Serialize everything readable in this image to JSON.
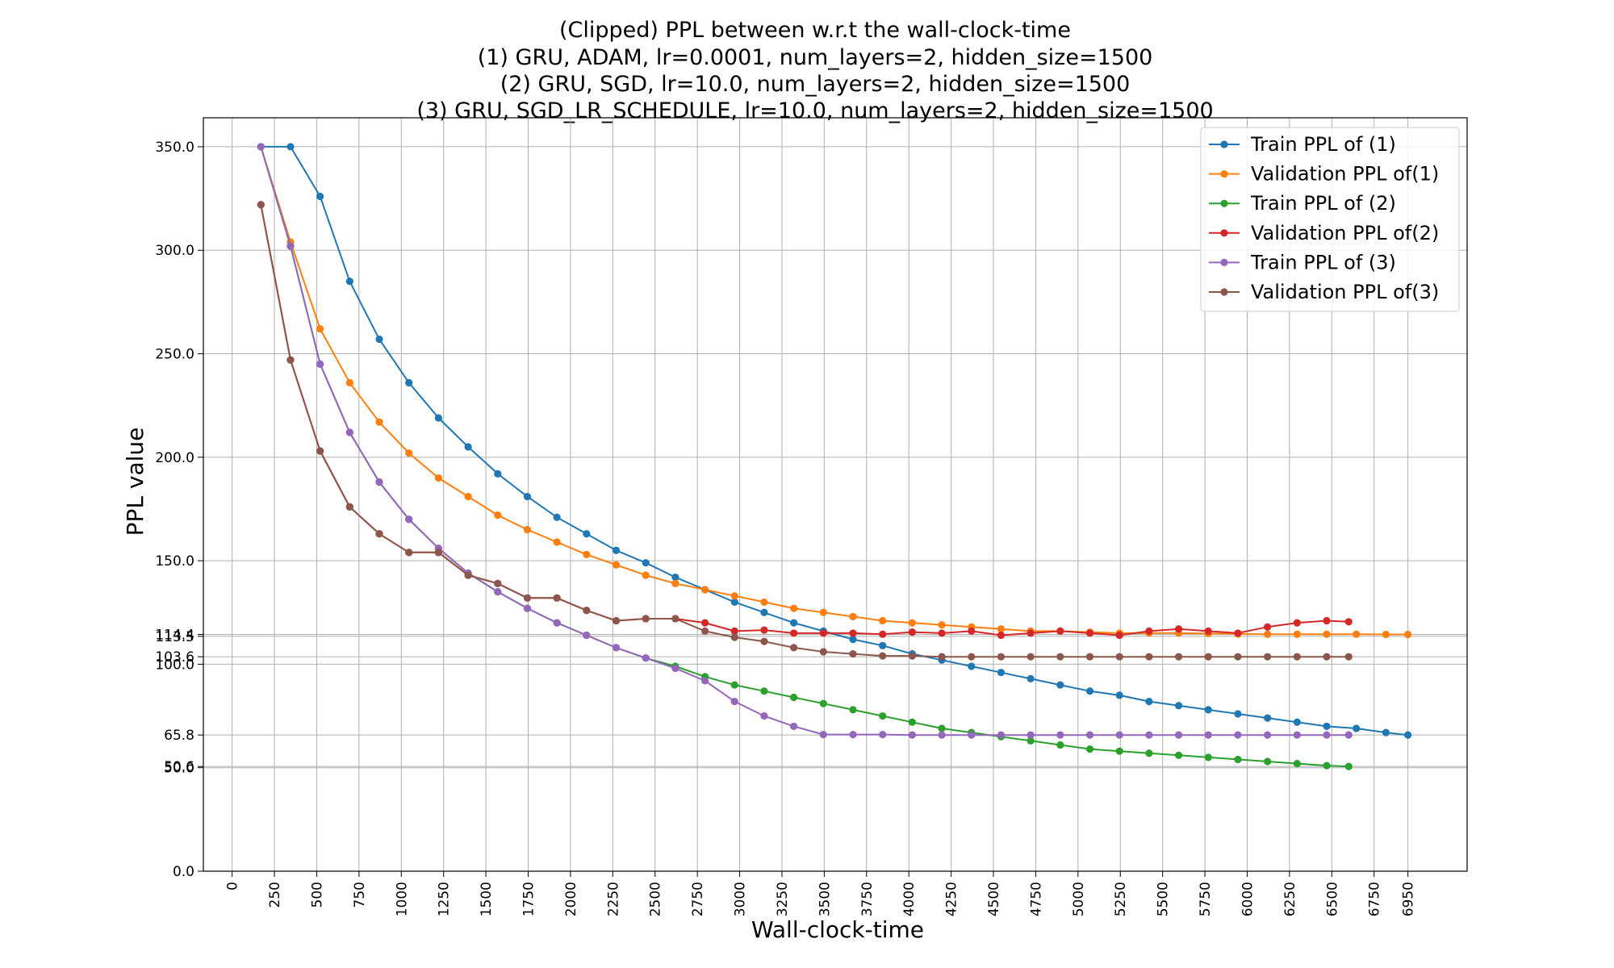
{
  "chart_data": {
    "type": "line",
    "title_lines": [
      "(Clipped) PPL between w.r.t the wall-clock-time",
      "(1) GRU, ADAM, lr=0.0001,  num_layers=2,  hidden_size=1500",
      "(2) GRU, SGD, lr=10.0,  num_layers=2,  hidden_size=1500",
      "(3) GRU, SGD_LR_SCHEDULE, lr=10.0,  num_layers=2,  hidden_size=1500"
    ],
    "xlabel": "Wall-clock-time",
    "ylabel": "PPL value",
    "xlim": [
      -170,
      7300
    ],
    "ylim": [
      0,
      364
    ],
    "x_ticks": [
      0,
      250,
      500,
      750,
      1000,
      1250,
      1500,
      1750,
      2000,
      2250,
      2500,
      2750,
      3000,
      3250,
      3500,
      3750,
      4000,
      4250,
      4500,
      4750,
      5000,
      5250,
      5500,
      5750,
      6000,
      6250,
      6500,
      6750,
      6950
    ],
    "y_ticks": [
      0.0,
      50.0,
      50.6,
      65.8,
      100.0,
      103.6,
      113.5,
      114.4,
      150.0,
      200.0,
      250.0,
      300.0,
      350.0
    ],
    "y_tick_labels": [
      "0.0",
      "50.0",
      "50.6",
      "65.8",
      "100.0",
      "103.6",
      "113.5",
      "114.4",
      "150.0",
      "200.0",
      "250.0",
      "300.0",
      "350.0"
    ],
    "grid": true,
    "legend_position": "top-right",
    "series": [
      {
        "name": "Train PPL of (1)",
        "color": "#1f77b4",
        "x": [
          170,
          345,
          520,
          695,
          870,
          1045,
          1220,
          1395,
          1570,
          1745,
          1920,
          2095,
          2270,
          2445,
          2620,
          2795,
          2970,
          3145,
          3320,
          3495,
          3670,
          3845,
          4020,
          4195,
          4370,
          4545,
          4720,
          4895,
          5070,
          5245,
          5420,
          5595,
          5770,
          5945,
          6120,
          6295,
          6470,
          6645,
          6820,
          6950
        ],
        "y": [
          350,
          350,
          326,
          285,
          257,
          236,
          219,
          205,
          192,
          181,
          171,
          163,
          155,
          149,
          142,
          136,
          130,
          125,
          120,
          116,
          112,
          109,
          105,
          102,
          99,
          96,
          93,
          90,
          87,
          85,
          82,
          80,
          78,
          76,
          74,
          72,
          70,
          69,
          67,
          65.8
        ]
      },
      {
        "name": "Validation PPL of(1)",
        "color": "#ff7f0e",
        "x": [
          170,
          345,
          520,
          695,
          870,
          1045,
          1220,
          1395,
          1570,
          1745,
          1920,
          2095,
          2270,
          2445,
          2620,
          2795,
          2970,
          3145,
          3320,
          3495,
          3670,
          3845,
          4020,
          4195,
          4370,
          4545,
          4720,
          4895,
          5070,
          5245,
          5420,
          5595,
          5770,
          5945,
          6120,
          6295,
          6470,
          6645,
          6820,
          6950
        ],
        "y": [
          350,
          304,
          262,
          236,
          217,
          202,
          190,
          181,
          172,
          165,
          159,
          153,
          148,
          143,
          139,
          136,
          133,
          130,
          127,
          125,
          123,
          121,
          120,
          119,
          118,
          117,
          116,
          116,
          115.5,
          115,
          115,
          115,
          114.8,
          114.6,
          114.5,
          114.5,
          114.5,
          114.5,
          114.4,
          114.4
        ]
      },
      {
        "name": "Train PPL of (2)",
        "color": "#2ca02c",
        "x": [
          170,
          345,
          520,
          695,
          870,
          1045,
          1220,
          1395,
          1570,
          1745,
          1920,
          2095,
          2270,
          2445,
          2620,
          2795,
          2970,
          3145,
          3320,
          3495,
          3670,
          3845,
          4020,
          4195,
          4370,
          4545,
          4720,
          4895,
          5070,
          5245,
          5420,
          5595,
          5770,
          5945,
          6120,
          6295,
          6470,
          6600
        ],
        "y": [
          350,
          302,
          245,
          212,
          188,
          170,
          156,
          144,
          135,
          127,
          120,
          114,
          108,
          103,
          99,
          94,
          90,
          87,
          84,
          81,
          78,
          75,
          72,
          69,
          67,
          65,
          63,
          61,
          59,
          58,
          57,
          56,
          55,
          54,
          53,
          52,
          51,
          50.6
        ]
      },
      {
        "name": "Validation PPL of(2)",
        "color": "#d62728",
        "x": [
          170,
          345,
          520,
          695,
          870,
          1045,
          1220,
          1395,
          1570,
          1745,
          1920,
          2095,
          2270,
          2445,
          2620,
          2795,
          2970,
          3145,
          3320,
          3495,
          3670,
          3845,
          4020,
          4195,
          4370,
          4545,
          4720,
          4895,
          5070,
          5245,
          5420,
          5595,
          5770,
          5945,
          6120,
          6295,
          6470,
          6600
        ],
        "y": [
          322,
          247,
          203,
          176,
          163,
          154,
          154,
          143,
          139,
          132,
          132,
          126,
          121,
          122,
          122,
          120,
          116,
          116.5,
          115,
          115,
          115,
          114.5,
          115.5,
          115,
          116,
          114,
          115,
          116,
          115,
          114,
          116,
          117,
          116,
          115,
          118,
          120,
          121,
          120.5
        ]
      },
      {
        "name": "Train PPL of (3)",
        "color": "#9467bd",
        "x": [
          170,
          345,
          520,
          695,
          870,
          1045,
          1220,
          1395,
          1570,
          1745,
          1920,
          2095,
          2270,
          2445,
          2620,
          2795,
          2970,
          3145,
          3320,
          3495,
          3670,
          3845,
          4020,
          4195,
          4370,
          4545,
          4720,
          4895,
          5070,
          5245,
          5420,
          5595,
          5770,
          5945,
          6120,
          6295,
          6470,
          6600
        ],
        "y": [
          350,
          302,
          245,
          212,
          188,
          170,
          156,
          144,
          135,
          127,
          120,
          114,
          108,
          103,
          98,
          92,
          82,
          75,
          70,
          66,
          66,
          66,
          65.8,
          65.8,
          65.8,
          65.8,
          65.8,
          65.8,
          65.8,
          65.8,
          65.8,
          65.8,
          65.8,
          65.8,
          65.8,
          65.8,
          65.8,
          65.8
        ]
      },
      {
        "name": "Validation PPL of(3)",
        "color": "#8c564b",
        "x": [
          170,
          345,
          520,
          695,
          870,
          1045,
          1220,
          1395,
          1570,
          1745,
          1920,
          2095,
          2270,
          2445,
          2620,
          2795,
          2970,
          3145,
          3320,
          3495,
          3670,
          3845,
          4020,
          4195,
          4370,
          4545,
          4720,
          4895,
          5070,
          5245,
          5420,
          5595,
          5770,
          5945,
          6120,
          6295,
          6470,
          6600
        ],
        "y": [
          322,
          247,
          203,
          176,
          163,
          154,
          154,
          143,
          139,
          132,
          132,
          126,
          121,
          122,
          122,
          116,
          113,
          111,
          108,
          106,
          105,
          104,
          104,
          103.6,
          103.6,
          103.6,
          103.6,
          103.6,
          103.6,
          103.6,
          103.6,
          103.6,
          103.6,
          103.6,
          103.6,
          103.6,
          103.6,
          103.6
        ]
      }
    ]
  }
}
